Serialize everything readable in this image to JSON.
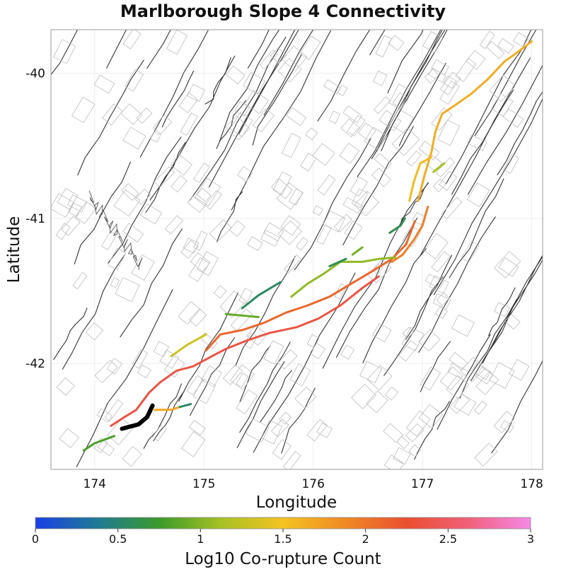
{
  "title": "Marlborough Slope 4 Connectivity",
  "axes": {
    "xlabel": "Longitude",
    "ylabel": "Latitude",
    "xlim": [
      173.6,
      178.1
    ],
    "ylim": [
      -42.73,
      -39.7
    ],
    "xticks": [
      "174",
      "175",
      "176",
      "177",
      "178"
    ],
    "yticks": [
      "-40",
      "-41",
      "-42"
    ]
  },
  "colorbar": {
    "label": "Log10 Co-rupture Count",
    "min": 0,
    "max": 3,
    "ticks": [
      "0",
      "0.5",
      "1",
      "1.5",
      "2",
      "2.5",
      "3"
    ],
    "stops": [
      "#1a3fe6",
      "#1f7a94",
      "#3b9a2a",
      "#a7c124",
      "#f5c322",
      "#f08a24",
      "#ea4f30",
      "#f2607a",
      "#f58ae8"
    ]
  },
  "chart_data": {
    "type": "map",
    "title": "Marlborough Slope 4 Connectivity",
    "xlabel": "Longitude",
    "ylabel": "Latitude",
    "colored_ruptures": [
      {
        "value": 2.35,
        "lonlat": [
          [
            174.15,
            -42.43
          ],
          [
            174.25,
            -42.38
          ],
          [
            174.38,
            -42.32
          ],
          [
            174.5,
            -42.2
          ],
          [
            174.6,
            -42.13
          ],
          [
            174.75,
            -42.05
          ],
          [
            174.9,
            -42.02
          ],
          [
            175.05,
            -41.96
          ],
          [
            175.2,
            -41.9
          ],
          [
            175.4,
            -41.84
          ],
          [
            175.6,
            -41.79
          ],
          [
            175.85,
            -41.75
          ],
          [
            176.05,
            -41.69
          ],
          [
            176.25,
            -41.6
          ],
          [
            176.45,
            -41.48
          ],
          [
            176.6,
            -41.4
          ]
        ]
      },
      {
        "value": 2.1,
        "lonlat": [
          [
            175.02,
            -41.91
          ],
          [
            175.15,
            -41.8
          ],
          [
            175.35,
            -41.77
          ],
          [
            175.55,
            -41.72
          ],
          [
            175.75,
            -41.65
          ],
          [
            175.95,
            -41.6
          ],
          [
            176.15,
            -41.54
          ],
          [
            176.35,
            -41.45
          ],
          [
            176.55,
            -41.36
          ],
          [
            176.72,
            -41.28
          ],
          [
            176.85,
            -41.18
          ],
          [
            176.93,
            -41.02
          ]
        ]
      },
      {
        "value": 1.95,
        "lonlat": [
          [
            176.72,
            -41.3
          ],
          [
            176.82,
            -41.25
          ],
          [
            176.92,
            -41.15
          ],
          [
            177.0,
            -41.05
          ],
          [
            177.05,
            -40.92
          ]
        ]
      },
      {
        "value": 1.65,
        "lonlat": [
          [
            176.96,
            -40.88
          ],
          [
            177.02,
            -40.7
          ],
          [
            177.08,
            -40.55
          ],
          [
            177.12,
            -40.4
          ],
          [
            177.18,
            -40.28
          ],
          [
            177.3,
            -40.22
          ],
          [
            177.45,
            -40.14
          ],
          [
            177.6,
            -40.04
          ],
          [
            177.75,
            -39.92
          ],
          [
            177.88,
            -39.85
          ],
          [
            178.0,
            -39.78
          ]
        ]
      },
      {
        "value": 1.55,
        "lonlat": [
          [
            176.88,
            -40.88
          ],
          [
            176.92,
            -40.75
          ],
          [
            176.98,
            -40.62
          ],
          [
            177.08,
            -40.58
          ]
        ]
      },
      {
        "value": 1.15,
        "lonlat": [
          [
            177.1,
            -40.68
          ],
          [
            177.2,
            -40.62
          ]
        ]
      },
      {
        "value": 1.05,
        "lonlat": [
          [
            175.8,
            -41.54
          ],
          [
            175.95,
            -41.45
          ],
          [
            176.1,
            -41.38
          ],
          [
            176.25,
            -41.3
          ],
          [
            176.45,
            -41.3
          ],
          [
            176.6,
            -41.28
          ],
          [
            176.75,
            -41.27
          ]
        ]
      },
      {
        "value": 0.95,
        "lonlat": [
          [
            176.36,
            -41.25
          ],
          [
            176.45,
            -41.2
          ]
        ]
      },
      {
        "value": 0.6,
        "lonlat": [
          [
            176.7,
            -41.1
          ],
          [
            176.8,
            -41.05
          ],
          [
            176.84,
            -41.0
          ]
        ]
      },
      {
        "value": 0.6,
        "lonlat": [
          [
            176.15,
            -41.33
          ],
          [
            176.3,
            -41.28
          ]
        ]
      },
      {
        "value": 0.55,
        "lonlat": [
          [
            175.35,
            -41.62
          ],
          [
            175.5,
            -41.53
          ],
          [
            175.7,
            -41.44
          ]
        ]
      },
      {
        "value": 0.9,
        "lonlat": [
          [
            175.2,
            -41.66
          ],
          [
            175.5,
            -41.68
          ]
        ]
      },
      {
        "value": 1.3,
        "lonlat": [
          [
            174.7,
            -41.95
          ],
          [
            174.85,
            -41.87
          ],
          [
            175.02,
            -41.8
          ]
        ]
      },
      {
        "value": 1.7,
        "lonlat": [
          [
            174.55,
            -42.32
          ],
          [
            174.7,
            -42.32
          ],
          [
            174.78,
            -42.3
          ]
        ]
      },
      {
        "value": 0.55,
        "lonlat": [
          [
            174.78,
            -42.3
          ],
          [
            174.88,
            -42.28
          ]
        ]
      },
      {
        "value": 0.8,
        "lonlat": [
          [
            173.9,
            -42.6
          ],
          [
            174.0,
            -42.55
          ],
          [
            174.18,
            -42.5
          ]
        ]
      }
    ],
    "target_rupture": {
      "color": "#000000",
      "lonlat": [
        [
          174.25,
          -42.45
        ],
        [
          174.4,
          -42.42
        ],
        [
          174.48,
          -42.37
        ],
        [
          174.53,
          -42.29
        ]
      ]
    }
  }
}
